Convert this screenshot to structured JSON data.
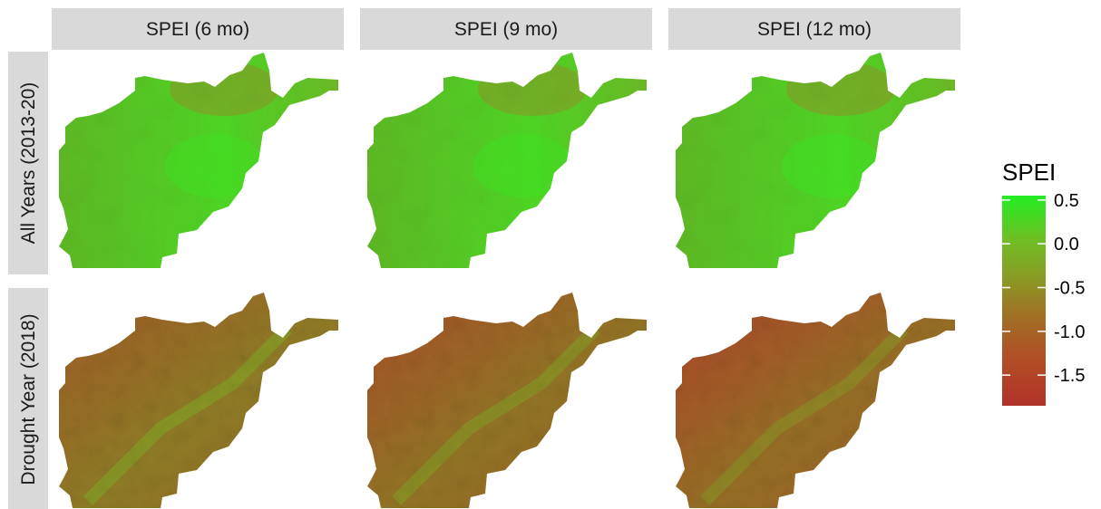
{
  "columns": [
    {
      "label": "SPEI (6 mo)"
    },
    {
      "label": "SPEI (9 mo)"
    },
    {
      "label": "SPEI (12 mo)"
    }
  ],
  "rows": [
    {
      "label": "All Years (2013-20)"
    },
    {
      "label": "Drought Year (2018)"
    }
  ],
  "legend": {
    "title": "SPEI",
    "ticks": [
      {
        "label": "0.5",
        "value": 0.5
      },
      {
        "label": "0.0",
        "value": 0.0
      },
      {
        "label": "-0.5",
        "value": -0.5
      },
      {
        "label": "-1.0",
        "value": -1.0
      },
      {
        "label": "-1.5",
        "value": -1.5
      }
    ],
    "range": [
      -1.85,
      0.55
    ],
    "colors": {
      "high": "#22ee22",
      "mid": "#6cc024",
      "low": "#b13228"
    }
  },
  "panels": [
    {
      "row": 0,
      "col": 0,
      "mean_spei": 0.0,
      "drought_severity": 0.0
    },
    {
      "row": 0,
      "col": 1,
      "mean_spei": 0.0,
      "drought_severity": 0.0
    },
    {
      "row": 0,
      "col": 2,
      "mean_spei": 0.05,
      "drought_severity": 0.0
    },
    {
      "row": 1,
      "col": 0,
      "mean_spei": -0.9,
      "drought_severity": 0.55
    },
    {
      "row": 1,
      "col": 1,
      "mean_spei": -1.05,
      "drought_severity": 0.72
    },
    {
      "row": 1,
      "col": 2,
      "mean_spei": -1.2,
      "drought_severity": 0.9
    }
  ]
}
